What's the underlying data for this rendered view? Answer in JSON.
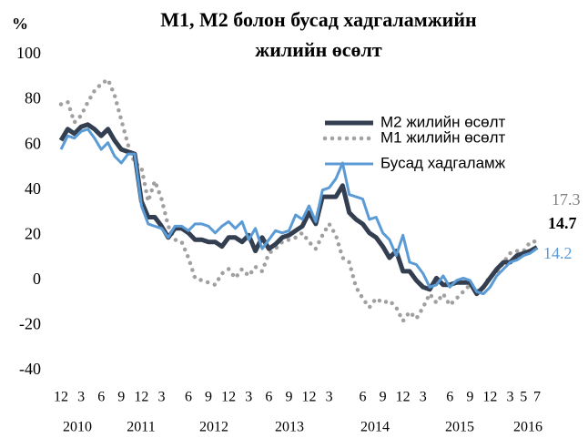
{
  "chart_data": {
    "type": "line",
    "title": [
      "M1, M2 болон бусад хадгаламжийн",
      "жилийн өсөлт"
    ],
    "y_label": "%",
    "categories": [
      "12",
      null,
      null,
      "3",
      null,
      null,
      "6",
      null,
      null,
      "9",
      null,
      null,
      "12",
      null,
      null,
      "3",
      null,
      null,
      null,
      "6",
      null,
      null,
      "9",
      null,
      null,
      "12",
      null,
      null,
      "3",
      null,
      null,
      "6",
      null,
      null,
      "9",
      null,
      null,
      "12",
      null,
      null,
      "3",
      null,
      null,
      null,
      null,
      "6",
      null,
      null,
      "9",
      null,
      null,
      "12",
      null,
      null,
      "3",
      null,
      null,
      null,
      "6",
      null,
      null,
      "9",
      null,
      null,
      "12",
      null,
      null,
      "3",
      null,
      "5",
      null,
      "7"
    ],
    "x_groups": [
      "2010",
      "2011",
      "2012",
      "2013",
      "2014",
      "2015",
      "2016"
    ],
    "ylim": [
      -40,
      100
    ],
    "yticks": [
      -40,
      -20,
      0,
      20,
      40,
      60,
      80,
      100
    ],
    "grid": false,
    "legend": "upper right",
    "series": [
      {
        "name": "M2 жилийн өсөлт",
        "color": "#333f50",
        "style": "solid",
        "values": [
          62,
          67,
          65,
          68,
          69,
          67,
          64,
          67,
          62,
          58,
          57,
          56,
          35,
          28,
          28,
          24,
          19,
          23,
          23,
          21,
          18,
          18,
          17,
          17,
          15,
          19,
          19,
          17,
          20,
          13,
          19,
          14,
          16,
          19,
          20,
          22,
          24,
          30,
          25,
          37,
          37,
          37,
          42,
          30,
          27,
          25,
          21,
          19,
          15,
          10,
          13,
          4,
          4,
          0,
          -3,
          -4,
          1,
          -2,
          -2,
          -1,
          -1,
          -1,
          -6,
          -3,
          1,
          5,
          8,
          8,
          11,
          12,
          13,
          14.7
        ]
      },
      {
        "name": "M1 жилийн өсөлт",
        "color": "#a0a0a0",
        "style": "dotted",
        "values": [
          78,
          79,
          70,
          73,
          79,
          84,
          87,
          89,
          82,
          71,
          60,
          52,
          50,
          35,
          44,
          36,
          24,
          18,
          17,
          10,
          1,
          0,
          -1,
          -2,
          3,
          5,
          1,
          5,
          2,
          6,
          4,
          12,
          14,
          17,
          18,
          19,
          21,
          17,
          14,
          20,
          25,
          20,
          10,
          8,
          -3,
          -8,
          -12,
          -8,
          -10,
          -9,
          -12,
          -18,
          -14,
          -17,
          -12,
          -6,
          -10,
          -6,
          -11,
          -8,
          -5,
          -2,
          -5,
          -3,
          2,
          3,
          8,
          12,
          13,
          13,
          17,
          17.3
        ]
      },
      {
        "name": "Бусад  хадгаламж",
        "color": "#5b9bd5",
        "style": "solid",
        "values": [
          58,
          64,
          63,
          66,
          67,
          63,
          58,
          61,
          55,
          52,
          56,
          56,
          33,
          25,
          24,
          23,
          19,
          24,
          24,
          22,
          25,
          25,
          24,
          21,
          24,
          26,
          23,
          26,
          18,
          23,
          14,
          18,
          22,
          21,
          22,
          29,
          27,
          33,
          26,
          40,
          41,
          45,
          52,
          38,
          37,
          36,
          27,
          28,
          21,
          18,
          11,
          20,
          8,
          7,
          3,
          -3,
          -2,
          2,
          -3,
          0,
          1,
          0,
          -5,
          -6,
          -3,
          2,
          5,
          8,
          9,
          11,
          12,
          14.2
        ]
      }
    ]
  }
}
